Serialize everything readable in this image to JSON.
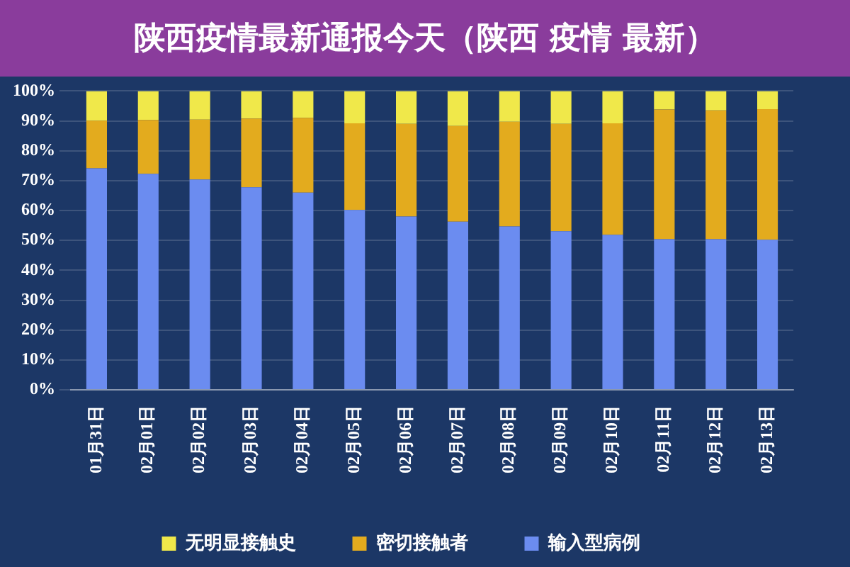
{
  "chart_data": {
    "type": "bar",
    "title": "陕西疫情最新通报今天（陕西 疫情 最新）",
    "stacked": true,
    "categories": [
      "01月31日",
      "02月01日",
      "02月02日",
      "02月03日",
      "02月04日",
      "02月05日",
      "02月06日",
      "02月07日",
      "02月08日",
      "02月09日",
      "02月10日",
      "02月11日",
      "02月12日",
      "02月13日"
    ],
    "series": [
      {
        "name": "输入型病例",
        "color": "#6b8cf0",
        "values": [
          74.1,
          72.3,
          70.4,
          67.8,
          66.0,
          60.2,
          58.0,
          56.3,
          54.7,
          53.1,
          51.9,
          50.4,
          50.4,
          50.2
        ]
      },
      {
        "name": "密切接触者",
        "color": "#e3ab1e",
        "values": [
          16,
          18,
          20,
          23,
          25,
          29,
          31,
          32.0,
          35.0,
          35.9,
          37.3,
          43.4,
          43.1,
          43.7
        ]
      },
      {
        "name": "无明显接触史",
        "color": "#f0e84a",
        "values": [
          9.9,
          9.7,
          9.6,
          9.2,
          9.0,
          10.8,
          11.0,
          11.7,
          10.3,
          11.0,
          10.8,
          6.2,
          6.5,
          6.1
        ]
      }
    ],
    "ylim": [
      0,
      100
    ],
    "yticks": [
      {
        "value": 0,
        "label": "0%"
      },
      {
        "value": 10,
        "label": "10%"
      },
      {
        "value": 20,
        "label": "20%"
      },
      {
        "value": 30,
        "label": "30%"
      },
      {
        "value": 40,
        "label": "40%"
      },
      {
        "value": 50,
        "label": "50%"
      },
      {
        "value": 60,
        "label": "60%"
      },
      {
        "value": 70,
        "label": "70%"
      },
      {
        "value": 80,
        "label": "80%"
      },
      {
        "value": 90,
        "label": "90%"
      },
      {
        "value": 100,
        "label": "100%"
      }
    ],
    "grid": "y",
    "legend": "bottom"
  }
}
